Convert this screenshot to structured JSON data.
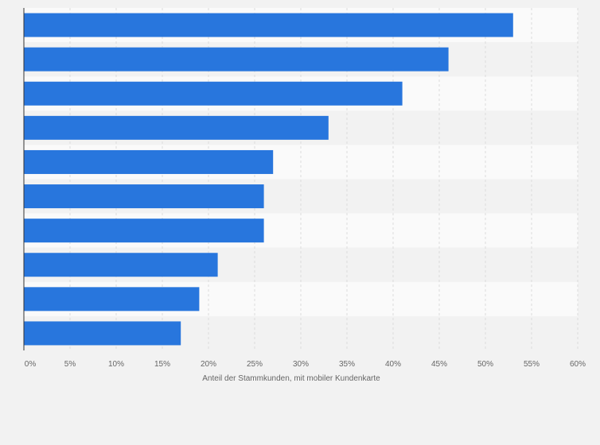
{
  "chart_data": {
    "type": "bar",
    "orientation": "horizontal",
    "title": "",
    "categories": [
      "",
      "",
      "",
      "",
      "",
      "",
      "",
      "",
      "",
      ""
    ],
    "values": [
      53,
      46,
      41,
      33,
      27,
      26,
      26,
      21,
      19,
      17
    ],
    "xlabel": "Anteil der Stammkunden, mit mobiler Kundenkarte",
    "ylabel": "",
    "xlim": [
      0,
      60
    ],
    "x_ticks": [
      0,
      5,
      10,
      15,
      20,
      25,
      30,
      35,
      40,
      45,
      50,
      55,
      60
    ],
    "x_tick_labels": [
      "0%",
      "5%",
      "10%",
      "15%",
      "20%",
      "25%",
      "30%",
      "35%",
      "40%",
      "45%",
      "50%",
      "55%",
      "60%"
    ],
    "grid": true,
    "legend": "none"
  },
  "colors": {
    "bar": "#2876dd",
    "band_light": "#fafafa",
    "band_dark": "#f2f2f2",
    "grid": "#dcdcdc",
    "axis": "#333333",
    "text": "#666666"
  }
}
